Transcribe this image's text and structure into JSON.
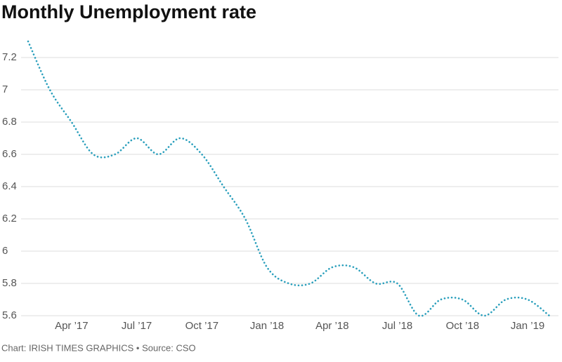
{
  "chart_data": {
    "type": "line",
    "title": "Monthly Unemployment rate",
    "source": "Chart: IRISH TIMES GRAPHICS • Source: CSO",
    "categories": [
      null,
      null,
      "Apr ’17",
      null,
      null,
      "Jul ’17",
      null,
      null,
      "Oct ’17",
      null,
      null,
      "Jan ’18",
      null,
      null,
      "Apr ’18",
      null,
      null,
      "Jul ’18",
      null,
      null,
      "Oct ’18",
      null,
      null,
      "Jan ’19",
      null
    ],
    "series": [
      {
        "name": "Unemployment rate",
        "color": "#2a9fbc",
        "values": [
          7.3,
          7.0,
          6.8,
          6.6,
          6.6,
          6.7,
          6.6,
          6.7,
          6.6,
          6.4,
          6.2,
          5.9,
          5.8,
          5.8,
          5.9,
          5.9,
          5.8,
          5.8,
          5.6,
          5.7,
          5.7,
          5.6,
          5.7,
          5.7,
          5.6
        ]
      }
    ],
    "ylim": [
      5.6,
      7.3
    ],
    "yticks": [
      5.6,
      5.8,
      6,
      6.2,
      6.4,
      6.6,
      6.8,
      7,
      7.2
    ],
    "grid": true
  }
}
